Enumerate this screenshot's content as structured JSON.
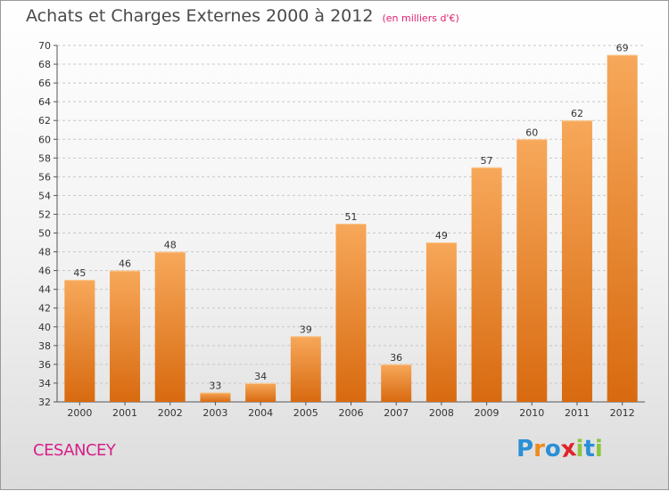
{
  "title": "Achats et Charges Externes 2000 à 2012",
  "unit_note": "(en milliers d'€)",
  "location": "CESANCEY",
  "brand": {
    "letters": [
      "P",
      "r",
      "o",
      "x",
      "i",
      "t",
      "i"
    ],
    "colors": [
      "#2a8fd6",
      "#f08a1c",
      "#2a8fd6",
      "#e0222a",
      "#8cc63f",
      "#2a8fd6",
      "#8cc63f"
    ]
  },
  "colors": {
    "bar": "#f08a2a",
    "bar_light": "#f7a85a",
    "bar_dark": "#d86a10",
    "grid": "#c8c8c8",
    "text": "#333333"
  },
  "chart_data": {
    "type": "bar",
    "title": "Achats et Charges Externes 2000 à 2012",
    "subtitle": "(en milliers d'€)",
    "xlabel": "",
    "ylabel": "",
    "categories": [
      "2000",
      "2001",
      "2002",
      "2003",
      "2004",
      "2005",
      "2006",
      "2007",
      "2008",
      "2009",
      "2010",
      "2011",
      "2012"
    ],
    "values": [
      45,
      46,
      48,
      33,
      34,
      39,
      51,
      36,
      49,
      57,
      60,
      62,
      69
    ],
    "ylim": [
      32,
      70
    ],
    "yticks": [
      32,
      34,
      36,
      38,
      40,
      42,
      44,
      46,
      48,
      50,
      52,
      54,
      56,
      58,
      60,
      62,
      64,
      66,
      68,
      70
    ],
    "grid": true,
    "data_labels": true
  }
}
